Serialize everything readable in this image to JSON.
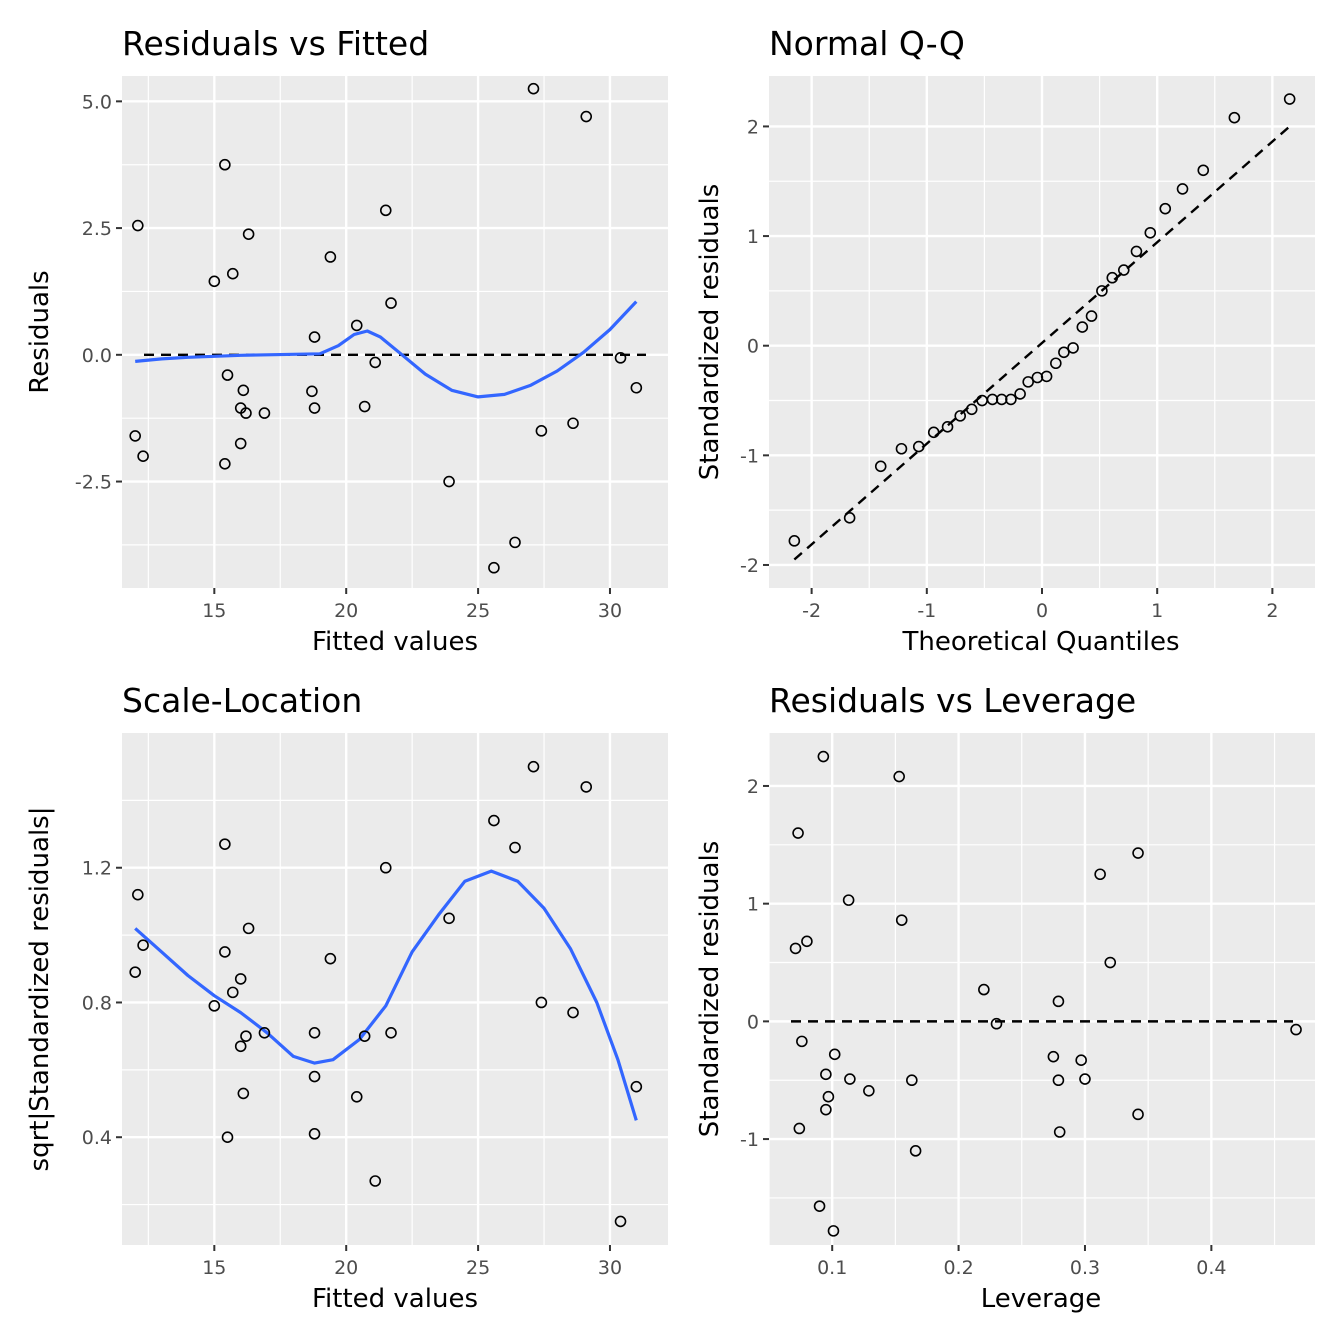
{
  "chart_data": [
    {
      "type": "scatter",
      "title": "Residuals vs Fitted",
      "xlabel": "Fitted values",
      "ylabel": "Residuals",
      "xlim": [
        11.5,
        32.2
      ],
      "ylim": [
        -4.6,
        5.5
      ],
      "xticks": [
        {
          "v": 15,
          "label": "15"
        },
        {
          "v": 20,
          "label": "20"
        },
        {
          "v": 25,
          "label": "25"
        },
        {
          "v": 30,
          "label": "30"
        }
      ],
      "yticks": [
        {
          "v": -2.5,
          "label": "-2.5"
        },
        {
          "v": 0,
          "label": "0.0"
        },
        {
          "v": 2.5,
          "label": "2.5"
        },
        {
          "v": 5,
          "label": "5.0"
        }
      ],
      "grid": true,
      "hline": 0,
      "points": [
        {
          "x": 12.0,
          "y": -1.6
        },
        {
          "x": 12.1,
          "y": 2.55
        },
        {
          "x": 12.3,
          "y": -2.0
        },
        {
          "x": 15.0,
          "y": 1.45
        },
        {
          "x": 15.4,
          "y": 3.75
        },
        {
          "x": 15.4,
          "y": -2.15
        },
        {
          "x": 15.5,
          "y": -0.4
        },
        {
          "x": 15.7,
          "y": 1.6
        },
        {
          "x": 16.0,
          "y": -1.05
        },
        {
          "x": 16.0,
          "y": -1.75
        },
        {
          "x": 16.1,
          "y": -0.7
        },
        {
          "x": 16.2,
          "y": -1.15
        },
        {
          "x": 16.3,
          "y": 2.38
        },
        {
          "x": 16.9,
          "y": -1.15
        },
        {
          "x": 18.8,
          "y": 0.35
        },
        {
          "x": 18.7,
          "y": -0.72
        },
        {
          "x": 18.8,
          "y": -1.05
        },
        {
          "x": 19.4,
          "y": 1.93
        },
        {
          "x": 20.4,
          "y": 0.58
        },
        {
          "x": 20.7,
          "y": -1.02
        },
        {
          "x": 21.1,
          "y": -0.15
        },
        {
          "x": 21.5,
          "y": 2.85
        },
        {
          "x": 21.7,
          "y": 1.02
        },
        {
          "x": 23.9,
          "y": -2.5
        },
        {
          "x": 25.6,
          "y": -4.2
        },
        {
          "x": 26.4,
          "y": -3.7
        },
        {
          "x": 27.1,
          "y": 5.25
        },
        {
          "x": 27.4,
          "y": -1.5
        },
        {
          "x": 28.6,
          "y": -1.35
        },
        {
          "x": 29.1,
          "y": 4.7
        },
        {
          "x": 30.4,
          "y": -0.06
        },
        {
          "x": 31.0,
          "y": -0.65
        }
      ],
      "smooth": [
        {
          "x": 12.0,
          "y": -0.13
        },
        {
          "x": 13.0,
          "y": -0.08
        },
        {
          "x": 14.0,
          "y": -0.05
        },
        {
          "x": 15.0,
          "y": -0.03
        },
        {
          "x": 16.0,
          "y": -0.01
        },
        {
          "x": 17.0,
          "y": 0.0
        },
        {
          "x": 18.0,
          "y": 0.01
        },
        {
          "x": 19.0,
          "y": 0.02
        },
        {
          "x": 19.7,
          "y": 0.18
        },
        {
          "x": 20.3,
          "y": 0.4
        },
        {
          "x": 20.8,
          "y": 0.47
        },
        {
          "x": 21.3,
          "y": 0.35
        },
        {
          "x": 22.0,
          "y": 0.05
        },
        {
          "x": 23.0,
          "y": -0.38
        },
        {
          "x": 24.0,
          "y": -0.7
        },
        {
          "x": 25.0,
          "y": -0.83
        },
        {
          "x": 26.0,
          "y": -0.78
        },
        {
          "x": 27.0,
          "y": -0.6
        },
        {
          "x": 28.0,
          "y": -0.32
        },
        {
          "x": 29.0,
          "y": 0.05
        },
        {
          "x": 30.0,
          "y": 0.5
        },
        {
          "x": 31.0,
          "y": 1.05
        }
      ]
    },
    {
      "type": "scatter",
      "title": "Normal Q-Q",
      "xlabel": "Theoretical Quantiles",
      "ylabel": "Standardized residuals",
      "xlim": [
        -2.37,
        2.37
      ],
      "ylim": [
        -2.21,
        2.46
      ],
      "xticks": [
        {
          "v": -2,
          "label": "-2"
        },
        {
          "v": -1,
          "label": "-1"
        },
        {
          "v": 0,
          "label": "0"
        },
        {
          "v": 1,
          "label": "1"
        },
        {
          "v": 2,
          "label": "2"
        }
      ],
      "yticks": [
        {
          "v": -2,
          "label": "-2"
        },
        {
          "v": -1,
          "label": "-1"
        },
        {
          "v": 0,
          "label": "0"
        },
        {
          "v": 1,
          "label": "1"
        },
        {
          "v": 2,
          "label": "2"
        }
      ],
      "grid": true,
      "refline": [
        {
          "x": -2.15,
          "y": -1.95
        },
        {
          "x": 2.15,
          "y": 2.0
        }
      ],
      "points": [
        {
          "x": -2.15,
          "y": -1.78
        },
        {
          "x": -1.67,
          "y": -1.57
        },
        {
          "x": -1.4,
          "y": -1.1
        },
        {
          "x": -1.22,
          "y": -0.94
        },
        {
          "x": -1.07,
          "y": -0.92
        },
        {
          "x": -0.94,
          "y": -0.79
        },
        {
          "x": -0.82,
          "y": -0.74
        },
        {
          "x": -0.71,
          "y": -0.64
        },
        {
          "x": -0.61,
          "y": -0.58
        },
        {
          "x": -0.52,
          "y": -0.5
        },
        {
          "x": -0.43,
          "y": -0.49
        },
        {
          "x": -0.35,
          "y": -0.49
        },
        {
          "x": -0.27,
          "y": -0.49
        },
        {
          "x": -0.19,
          "y": -0.44
        },
        {
          "x": -0.12,
          "y": -0.33
        },
        {
          "x": -0.04,
          "y": -0.29
        },
        {
          "x": 0.04,
          "y": -0.28
        },
        {
          "x": 0.12,
          "y": -0.16
        },
        {
          "x": 0.19,
          "y": -0.06
        },
        {
          "x": 0.27,
          "y": -0.02
        },
        {
          "x": 0.35,
          "y": 0.17
        },
        {
          "x": 0.43,
          "y": 0.27
        },
        {
          "x": 0.52,
          "y": 0.5
        },
        {
          "x": 0.61,
          "y": 0.62
        },
        {
          "x": 0.71,
          "y": 0.69
        },
        {
          "x": 0.82,
          "y": 0.86
        },
        {
          "x": 0.94,
          "y": 1.03
        },
        {
          "x": 1.07,
          "y": 1.25
        },
        {
          "x": 1.22,
          "y": 1.43
        },
        {
          "x": 1.4,
          "y": 1.6
        },
        {
          "x": 1.67,
          "y": 2.08
        },
        {
          "x": 2.15,
          "y": 2.25
        }
      ]
    },
    {
      "type": "scatter",
      "title": "Scale-Location",
      "xlabel": "Fitted values",
      "ylabel": "sqrt|Standardized residuals|",
      "xlim": [
        11.5,
        32.2
      ],
      "ylim": [
        0.08,
        1.6
      ],
      "xticks": [
        {
          "v": 15,
          "label": "15"
        },
        {
          "v": 20,
          "label": "20"
        },
        {
          "v": 25,
          "label": "25"
        },
        {
          "v": 30,
          "label": "30"
        }
      ],
      "yticks": [
        {
          "v": 0.4,
          "label": "0.4"
        },
        {
          "v": 0.8,
          "label": "0.8"
        },
        {
          "v": 1.2,
          "label": "1.2"
        }
      ],
      "grid": true,
      "points": [
        {
          "x": 12.0,
          "y": 0.89
        },
        {
          "x": 12.1,
          "y": 1.12
        },
        {
          "x": 12.3,
          "y": 0.97
        },
        {
          "x": 15.0,
          "y": 0.79
        },
        {
          "x": 15.4,
          "y": 1.27
        },
        {
          "x": 15.4,
          "y": 0.95
        },
        {
          "x": 15.5,
          "y": 0.4
        },
        {
          "x": 15.7,
          "y": 0.83
        },
        {
          "x": 16.0,
          "y": 0.87
        },
        {
          "x": 16.0,
          "y": 0.67
        },
        {
          "x": 16.1,
          "y": 0.53
        },
        {
          "x": 16.2,
          "y": 0.7
        },
        {
          "x": 16.3,
          "y": 1.02
        },
        {
          "x": 16.9,
          "y": 0.71
        },
        {
          "x": 18.8,
          "y": 0.58
        },
        {
          "x": 18.8,
          "y": 0.41
        },
        {
          "x": 18.8,
          "y": 0.71
        },
        {
          "x": 19.4,
          "y": 0.93
        },
        {
          "x": 20.4,
          "y": 0.52
        },
        {
          "x": 20.7,
          "y": 0.7
        },
        {
          "x": 21.1,
          "y": 0.27
        },
        {
          "x": 21.5,
          "y": 1.2
        },
        {
          "x": 21.7,
          "y": 0.71
        },
        {
          "x": 23.9,
          "y": 1.05
        },
        {
          "x": 25.6,
          "y": 1.34
        },
        {
          "x": 26.4,
          "y": 1.26
        },
        {
          "x": 27.1,
          "y": 1.5
        },
        {
          "x": 27.4,
          "y": 0.8
        },
        {
          "x": 28.6,
          "y": 0.77
        },
        {
          "x": 29.1,
          "y": 1.44
        },
        {
          "x": 30.4,
          "y": 0.15
        },
        {
          "x": 31.0,
          "y": 0.55
        }
      ],
      "smooth": [
        {
          "x": 12.0,
          "y": 1.02
        },
        {
          "x": 13.0,
          "y": 0.95
        },
        {
          "x": 14.0,
          "y": 0.88
        },
        {
          "x": 15.0,
          "y": 0.82
        },
        {
          "x": 16.0,
          "y": 0.77
        },
        {
          "x": 17.0,
          "y": 0.71
        },
        {
          "x": 18.0,
          "y": 0.64
        },
        {
          "x": 18.8,
          "y": 0.62
        },
        {
          "x": 19.5,
          "y": 0.63
        },
        {
          "x": 20.5,
          "y": 0.69
        },
        {
          "x": 21.5,
          "y": 0.79
        },
        {
          "x": 22.5,
          "y": 0.95
        },
        {
          "x": 23.5,
          "y": 1.06
        },
        {
          "x": 24.5,
          "y": 1.16
        },
        {
          "x": 25.5,
          "y": 1.19
        },
        {
          "x": 26.5,
          "y": 1.16
        },
        {
          "x": 27.5,
          "y": 1.08
        },
        {
          "x": 28.5,
          "y": 0.96
        },
        {
          "x": 29.5,
          "y": 0.8
        },
        {
          "x": 30.3,
          "y": 0.63
        },
        {
          "x": 31.0,
          "y": 0.45
        }
      ]
    },
    {
      "type": "scatter",
      "title": "Residuals vs Leverage",
      "xlabel": "Leverage",
      "ylabel": "Standardized residuals",
      "xlim": [
        0.05,
        0.482
      ],
      "ylim": [
        -1.9,
        2.45
      ],
      "xticks": [
        {
          "v": 0.1,
          "label": "0.1"
        },
        {
          "v": 0.2,
          "label": "0.2"
        },
        {
          "v": 0.3,
          "label": "0.3"
        },
        {
          "v": 0.4,
          "label": "0.4"
        }
      ],
      "yticks": [
        {
          "v": -1,
          "label": "-1"
        },
        {
          "v": 0,
          "label": "0"
        },
        {
          "v": 1,
          "label": "1"
        },
        {
          "v": 2,
          "label": "2"
        }
      ],
      "grid": true,
      "hline": 0,
      "points": [
        {
          "x": 0.071,
          "y": 0.62
        },
        {
          "x": 0.073,
          "y": 1.6
        },
        {
          "x": 0.074,
          "y": -0.91
        },
        {
          "x": 0.076,
          "y": -0.17
        },
        {
          "x": 0.08,
          "y": 0.68
        },
        {
          "x": 0.09,
          "y": -1.57
        },
        {
          "x": 0.093,
          "y": 2.25
        },
        {
          "x": 0.095,
          "y": -0.45
        },
        {
          "x": 0.095,
          "y": -0.75
        },
        {
          "x": 0.097,
          "y": -0.64
        },
        {
          "x": 0.101,
          "y": -1.78
        },
        {
          "x": 0.102,
          "y": -0.28
        },
        {
          "x": 0.113,
          "y": 1.03
        },
        {
          "x": 0.114,
          "y": -0.49
        },
        {
          "x": 0.129,
          "y": -0.59
        },
        {
          "x": 0.153,
          "y": 2.08
        },
        {
          "x": 0.155,
          "y": 0.86
        },
        {
          "x": 0.163,
          "y": -0.5
        },
        {
          "x": 0.166,
          "y": -1.1
        },
        {
          "x": 0.22,
          "y": 0.27
        },
        {
          "x": 0.23,
          "y": -0.02
        },
        {
          "x": 0.275,
          "y": -0.3
        },
        {
          "x": 0.279,
          "y": 0.17
        },
        {
          "x": 0.279,
          "y": -0.5
        },
        {
          "x": 0.28,
          "y": -0.94
        },
        {
          "x": 0.297,
          "y": -0.33
        },
        {
          "x": 0.3,
          "y": -0.49
        },
        {
          "x": 0.312,
          "y": 1.25
        },
        {
          "x": 0.32,
          "y": 0.5
        },
        {
          "x": 0.342,
          "y": 1.43
        },
        {
          "x": 0.342,
          "y": -0.79
        },
        {
          "x": 0.467,
          "y": -0.07
        }
      ]
    }
  ]
}
